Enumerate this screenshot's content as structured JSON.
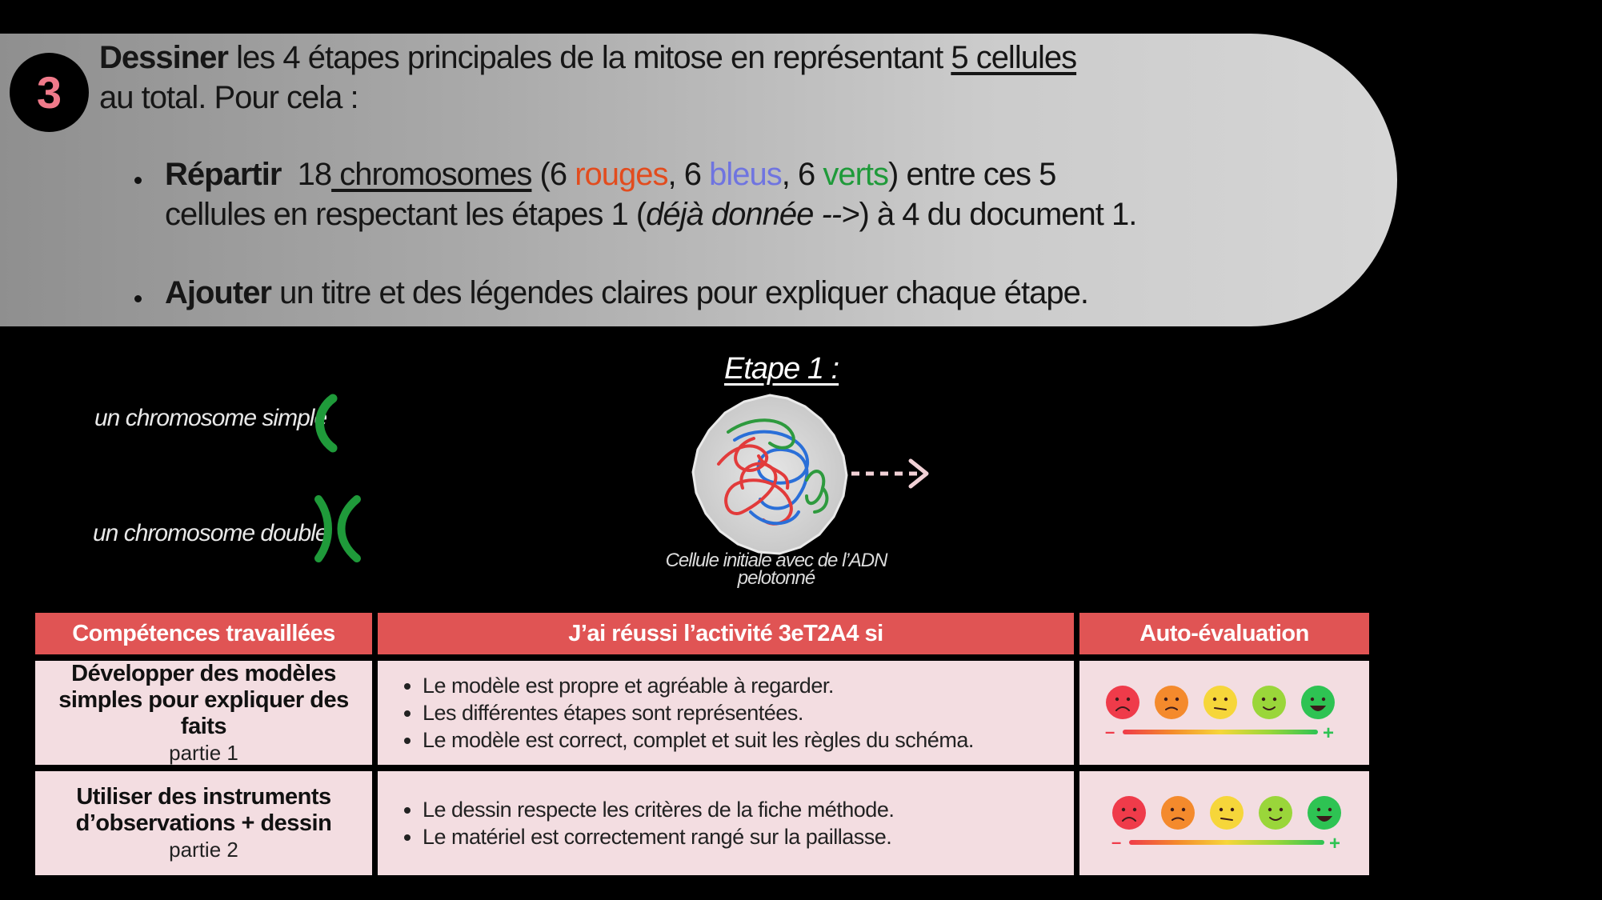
{
  "instruction": {
    "number": "3",
    "line1_bold": "Dessiner",
    "line1_rest": " les 4 étapes principales de la mitose en représentant ",
    "line1_underlined": "5 cellules",
    "line2": "au total. Pour cela :",
    "bullet1": {
      "bold": "Répartir",
      "pre": "18",
      "underlined": " chromosomes",
      "open": " (6 ",
      "red": "rouges",
      "sep1": ", 6 ",
      "blue": "bleus",
      "sep2": ", 6 ",
      "green": "verts",
      "close": ") entre ces 5",
      "line2_start": "cellules en respectant les étapes 1 (",
      "line2_italic": "déjà donnée -->",
      "line2_end": ") à 4 du document 1."
    },
    "bullet2": {
      "bold": "Ajouter",
      "rest": " un titre et des légendes claires pour expliquer chaque étape."
    }
  },
  "legend": {
    "simple": "un chromosome simple",
    "double": "un chromosome double",
    "chromosome_color": "#1f9a3a"
  },
  "figure": {
    "title": "Etape 1 :",
    "caption": "Cellule initiale avec de l’ADN pelotonné"
  },
  "table": {
    "headers": [
      "Compétences travaillées",
      "J’ai réussi l’activité 3eT2A4 si",
      "Auto-évaluation"
    ],
    "rows": [
      {
        "competence": "Développer des modèles simples pour expliquer des faits",
        "partie": "partie 1",
        "criteria": [
          "Le modèle est propre et agréable à regarder.",
          "Les différentes étapes sont représentées.",
          "Le modèle est correct, complet et suit les règles du schéma."
        ]
      },
      {
        "competence": "Utiliser des instruments d’observations + dessin",
        "partie": "partie 2",
        "criteria": [
          "Le dessin respecte les critères de la fiche méthode.",
          "Le matériel est correctement rangé sur la paillasse."
        ]
      }
    ],
    "scale_minus": "–",
    "scale_plus": "+",
    "smiley_colors": [
      "#ef3b4a",
      "#f48a2c",
      "#f6d63a",
      "#9ad63a",
      "#2ec353"
    ],
    "header_color": "#e05454",
    "cell_color": "#f3dde1"
  }
}
